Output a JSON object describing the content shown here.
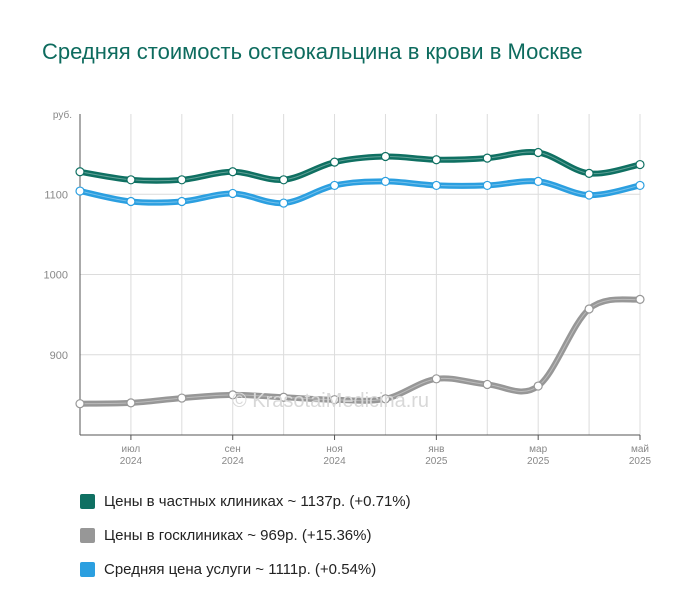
{
  "colors": {
    "private": "#0f7062",
    "state": "#979797",
    "average": "#2b9fe0",
    "grid": "#dcdcdc",
    "axis": "#555555"
  },
  "chart_data": {
    "type": "line",
    "title": "Средняя стоимость остеокальцина в крови в Москве",
    "ylabel": "руб.",
    "ylim": [
      800,
      1200
    ],
    "yticks": [
      900,
      1000,
      1100
    ],
    "xtick_labels": [
      {
        "month": "июл",
        "year": "2024"
      },
      {
        "month": "сен",
        "year": "2024"
      },
      {
        "month": "ноя",
        "year": "2024"
      },
      {
        "month": "янв",
        "year": "2025"
      },
      {
        "month": "мар",
        "year": "2025"
      },
      {
        "month": "май",
        "year": "2025"
      }
    ],
    "x": [
      "2024-06",
      "2024-07",
      "2024-08",
      "2024-09",
      "2024-10",
      "2024-11",
      "2024-12",
      "2025-01",
      "2025-02",
      "2025-03",
      "2025-04",
      "2025-05"
    ],
    "series": [
      {
        "name": "Цены в частных клиниках",
        "key": "private",
        "values": [
          1128,
          1118,
          1118,
          1128,
          1118,
          1140,
          1147,
          1143,
          1145,
          1152,
          1126,
          1137
        ]
      },
      {
        "name": "Средняя цена услуги",
        "key": "average",
        "values": [
          1104,
          1091,
          1091,
          1101,
          1089,
          1111,
          1116,
          1111,
          1111,
          1116,
          1099,
          1111
        ]
      },
      {
        "name": "Цены в госклиниках",
        "key": "state",
        "values": [
          839,
          840,
          846,
          850,
          847,
          844,
          845,
          870,
          863,
          861,
          957,
          969
        ]
      }
    ],
    "legend": [
      {
        "key": "private",
        "label": "Цены в частных клиниках ~ 1137р. (+0.71%)"
      },
      {
        "key": "state",
        "label": "Цены в госклиниках ~ 969р. (+15.36%)"
      },
      {
        "key": "average",
        "label": "Средняя цена услуги ~ 1111р. (+0.54%)"
      }
    ],
    "legend_position": "bottom",
    "grid": true
  },
  "watermark": "© KrasotaiMedicina.ru"
}
